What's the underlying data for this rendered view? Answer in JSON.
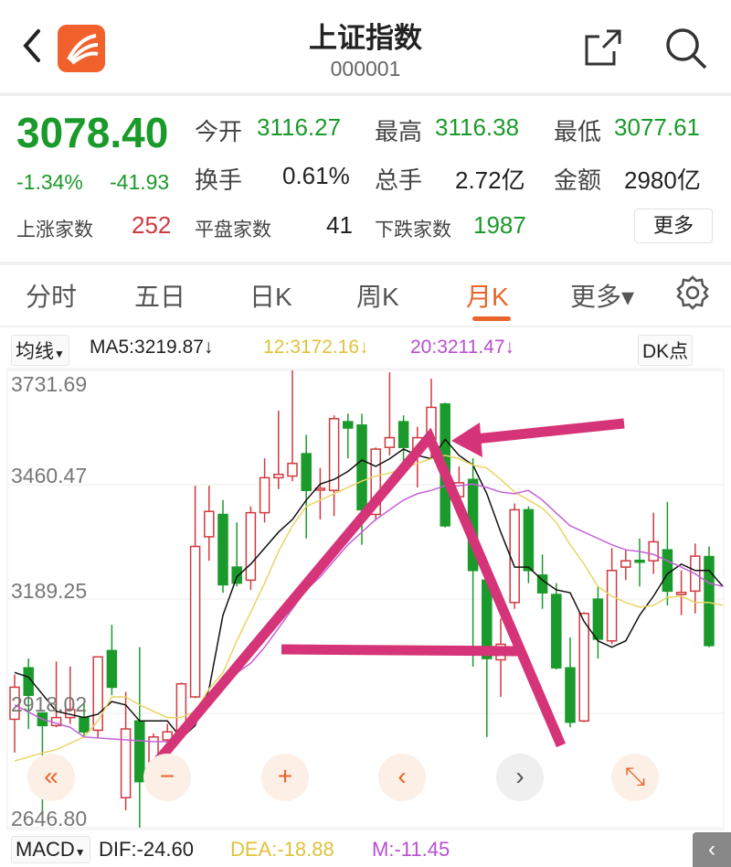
{
  "header": {
    "title": "上证指数",
    "code": "000001",
    "icons": [
      "back-icon",
      "app-logo",
      "share-icon",
      "search-icon"
    ]
  },
  "quote": {
    "price": "3078.40",
    "change_pct": "-1.34%",
    "change": "-41.93",
    "open_label": "今开",
    "open": "3116.27",
    "high_label": "最高",
    "high": "3116.38",
    "low_label": "最低",
    "low": "3077.61",
    "turnover_label": "换手",
    "turnover": "0.61%",
    "volume_label": "总手",
    "volume": "2.72亿",
    "amount_label": "金额",
    "amount": "2980亿",
    "up_label": "上涨家数",
    "up": "252",
    "flat_label": "平盘家数",
    "flat": "41",
    "down_label": "下跌家数",
    "down": "1987",
    "more": "更多"
  },
  "tabs": [
    {
      "label": "分时"
    },
    {
      "label": "五日"
    },
    {
      "label": "日K"
    },
    {
      "label": "周K"
    },
    {
      "label": "月K",
      "active": true
    },
    {
      "label": "更多▾"
    }
  ],
  "ma": {
    "selector": "均线",
    "ma5": "MA5:3219.87↓",
    "ma12": "12:3172.16↓",
    "ma20": "20:3211.47↓",
    "dk": "DK点"
  },
  "macd": {
    "selector": "MACD",
    "dif": "DIF:-24.60",
    "dea": "DEA:-18.88",
    "m": "M:-11.45"
  },
  "controls": [
    "«",
    "−",
    "+",
    "‹",
    "›",
    "⤡"
  ],
  "colors": {
    "up": "#d0393f",
    "down": "#1a9a2a",
    "ma5": "#111111",
    "ma12": "#e8d465",
    "ma20": "#c561d6",
    "annotation": "#d63478",
    "accent": "#e8642a"
  },
  "chart_data": {
    "type": "candlestick",
    "y_ticks": [
      "3731.69",
      "3460.47",
      "3189.25",
      "2918.02",
      "2646.80"
    ],
    "ylim": [
      2646.8,
      3731.69
    ],
    "grid": true,
    "ohlc": [
      [
        2904,
        3010,
        2825,
        2980
      ],
      [
        3026,
        3048,
        2881,
        2961
      ],
      [
        2919,
        2920,
        2650,
        2889
      ],
      [
        2889,
        3041,
        2885,
        2908
      ],
      [
        2908,
        3029,
        2893,
        2927
      ],
      [
        2908,
        2946,
        2862,
        2874
      ],
      [
        2878,
        3052,
        2859,
        3052
      ],
      [
        3067,
        3128,
        2961,
        2980
      ],
      [
        2718,
        2969,
        2688,
        2881
      ],
      [
        2900,
        3075,
        2647,
        2756
      ],
      [
        2745,
        2870,
        2726,
        2862
      ],
      [
        2855,
        2893,
        2802,
        2874
      ],
      [
        2870,
        2991,
        2862,
        2988
      ],
      [
        2957,
        3458,
        2954,
        3314
      ],
      [
        3337,
        3458,
        3280,
        3397
      ],
      [
        3390,
        3424,
        3204,
        3223
      ],
      [
        3265,
        3371,
        3219,
        3227
      ],
      [
        3234,
        3409,
        3211,
        3394
      ],
      [
        3394,
        3523,
        3371,
        3477
      ],
      [
        3477,
        3636,
        3450,
        3485
      ],
      [
        3481,
        3732,
        3469,
        3511
      ],
      [
        3534,
        3579,
        3333,
        3447
      ],
      [
        3450,
        3500,
        3378,
        3452
      ],
      [
        3447,
        3625,
        3386,
        3617
      ],
      [
        3610,
        3629,
        3523,
        3595
      ],
      [
        3602,
        3629,
        3318,
        3401
      ],
      [
        3390,
        3549,
        3375,
        3545
      ],
      [
        3549,
        3727,
        3530,
        3572
      ],
      [
        3610,
        3625,
        3507,
        3549
      ],
      [
        3545,
        3598,
        3454,
        3572
      ],
      [
        3568,
        3712,
        3523,
        3644
      ],
      [
        3652,
        3655,
        3359,
        3363
      ],
      [
        3432,
        3504,
        3424,
        3465
      ],
      [
        3473,
        3523,
        3029,
        3257
      ],
      [
        3234,
        3234,
        2862,
        3048
      ],
      [
        3045,
        3143,
        2957,
        3082
      ],
      [
        3181,
        3416,
        3166,
        3401
      ],
      [
        3401,
        3409,
        3227,
        3257
      ],
      [
        3246,
        3295,
        3166,
        3204
      ],
      [
        3200,
        3227,
        3022,
        3026
      ],
      [
        3026,
        3098,
        2885,
        2897
      ],
      [
        2900,
        3158,
        2897,
        3155
      ],
      [
        3189,
        3219,
        3048,
        3094
      ],
      [
        3090,
        3310,
        3082,
        3257
      ],
      [
        3265,
        3306,
        3234,
        3280
      ],
      [
        3281,
        3333,
        3219,
        3278
      ],
      [
        3280,
        3394,
        3249,
        3325
      ],
      [
        3306,
        3420,
        3174,
        3208
      ],
      [
        3200,
        3257,
        3151,
        3205
      ],
      [
        3208,
        3321,
        3155,
        3291
      ],
      [
        3290,
        3314,
        3075,
        3079
      ]
    ],
    "ma5": [
      [
        0,
        3015
      ],
      [
        1,
        3004
      ],
      [
        3,
        2923
      ],
      [
        5,
        2908
      ],
      [
        6,
        2916
      ],
      [
        7,
        2946
      ],
      [
        8,
        2938
      ],
      [
        9,
        2900
      ],
      [
        11,
        2900
      ],
      [
        12,
        2859
      ],
      [
        13,
        2889
      ],
      [
        14,
        2976
      ],
      [
        15,
        3151
      ],
      [
        16,
        3242
      ],
      [
        17,
        3272
      ],
      [
        18,
        3310
      ],
      [
        19,
        3348
      ],
      [
        20,
        3378
      ],
      [
        21,
        3424
      ],
      [
        22,
        3462
      ],
      [
        23,
        3473
      ],
      [
        24,
        3492
      ],
      [
        25,
        3519
      ],
      [
        26,
        3504
      ],
      [
        27,
        3522
      ],
      [
        28,
        3545
      ],
      [
        29,
        3530
      ],
      [
        30,
        3522
      ],
      [
        31,
        3568
      ],
      [
        32,
        3530
      ],
      [
        33,
        3507
      ],
      [
        34,
        3439
      ],
      [
        35,
        3348
      ],
      [
        36,
        3265
      ],
      [
        37,
        3265
      ],
      [
        38,
        3234
      ],
      [
        39,
        3211
      ],
      [
        40,
        3204
      ],
      [
        41,
        3136
      ],
      [
        42,
        3090
      ],
      [
        43,
        3075
      ],
      [
        44,
        3090
      ],
      [
        45,
        3151
      ],
      [
        46,
        3196
      ],
      [
        47,
        3249
      ],
      [
        48,
        3272
      ],
      [
        49,
        3257
      ],
      [
        50,
        3257
      ],
      [
        51,
        3219
      ]
    ],
    "ma12": [
      [
        0,
        2805
      ],
      [
        2,
        2824
      ],
      [
        3,
        2832
      ],
      [
        5,
        2862
      ],
      [
        6,
        2900
      ],
      [
        7,
        2957
      ],
      [
        8,
        2957
      ],
      [
        9,
        2938
      ],
      [
        10,
        2923
      ],
      [
        11,
        2908
      ],
      [
        12,
        2908
      ],
      [
        13,
        2923
      ],
      [
        14,
        2976
      ],
      [
        15,
        3014
      ],
      [
        16,
        3090
      ],
      [
        17,
        3158
      ],
      [
        18,
        3227
      ],
      [
        19,
        3302
      ],
      [
        20,
        3363
      ],
      [
        21,
        3409
      ],
      [
        22,
        3424
      ],
      [
        23,
        3439
      ],
      [
        24,
        3454
      ],
      [
        25,
        3469
      ],
      [
        26,
        3481
      ],
      [
        27,
        3488
      ],
      [
        28,
        3500
      ],
      [
        29,
        3511
      ],
      [
        30,
        3522
      ],
      [
        31,
        3530
      ],
      [
        32,
        3522
      ],
      [
        33,
        3507
      ],
      [
        34,
        3500
      ],
      [
        35,
        3473
      ],
      [
        36,
        3443
      ],
      [
        37,
        3424
      ],
      [
        38,
        3405
      ],
      [
        39,
        3371
      ],
      [
        40,
        3318
      ],
      [
        41,
        3272
      ],
      [
        42,
        3219
      ],
      [
        43,
        3196
      ],
      [
        44,
        3181
      ],
      [
        45,
        3170
      ],
      [
        46,
        3174
      ],
      [
        47,
        3193
      ],
      [
        48,
        3196
      ],
      [
        49,
        3181
      ],
      [
        50,
        3181
      ],
      [
        51,
        3174
      ]
    ],
    "ma20": [
      [
        0,
        2938
      ],
      [
        2,
        2904
      ],
      [
        4,
        2885
      ],
      [
        5,
        2862
      ],
      [
        8,
        2855
      ],
      [
        10,
        2851
      ],
      [
        11,
        2851
      ],
      [
        12,
        2859
      ],
      [
        13,
        2893
      ],
      [
        14,
        2953
      ],
      [
        15,
        2999
      ],
      [
        16,
        3014
      ],
      [
        17,
        3037
      ],
      [
        18,
        3075
      ],
      [
        19,
        3120
      ],
      [
        20,
        3166
      ],
      [
        21,
        3211
      ],
      [
        22,
        3242
      ],
      [
        23,
        3280
      ],
      [
        24,
        3318
      ],
      [
        25,
        3348
      ],
      [
        26,
        3378
      ],
      [
        27,
        3401
      ],
      [
        28,
        3424
      ],
      [
        29,
        3439
      ],
      [
        30,
        3447
      ],
      [
        31,
        3458
      ],
      [
        32,
        3458
      ],
      [
        33,
        3462
      ],
      [
        34,
        3454
      ],
      [
        35,
        3443
      ],
      [
        36,
        3439
      ],
      [
        37,
        3447
      ],
      [
        38,
        3424
      ],
      [
        39,
        3393
      ],
      [
        40,
        3363
      ],
      [
        41,
        3348
      ],
      [
        42,
        3333
      ],
      [
        43,
        3318
      ],
      [
        44,
        3306
      ],
      [
        45,
        3302
      ],
      [
        46,
        3295
      ],
      [
        47,
        3280
      ],
      [
        48,
        3265
      ],
      [
        49,
        3249
      ],
      [
        50,
        3227
      ],
      [
        51,
        3219
      ]
    ]
  }
}
